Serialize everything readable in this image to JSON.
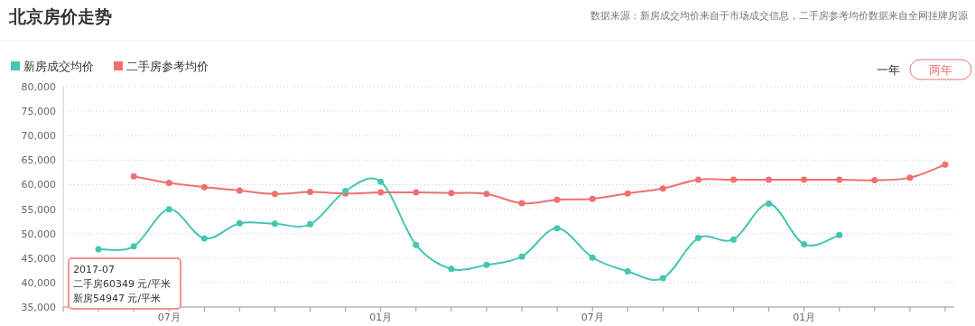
{
  "chart_data": {
    "type": "line",
    "title": "北京房价走势",
    "annotations": [
      "数据来源：新房成交均价来自于市场成交信息，二手房参考均价数据来自全网挂牌房源",
      "一年",
      "两年",
      {
        "text": "2017-07"
      },
      {
        "text": "二手房60349 元/平米"
      },
      {
        "text": "新房54947 元/平米"
      }
    ],
    "categories": [
      null,
      null,
      null,
      "07月",
      null,
      null,
      null,
      null,
      null,
      "01月",
      null,
      null,
      null,
      null,
      null,
      "07月",
      null,
      null,
      null,
      null,
      null,
      "01月",
      null,
      null,
      null,
      null
    ],
    "series": [
      {
        "name": "新房成交均价",
        "color": "#45c6b0",
        "values": [
          null,
          46800,
          47400,
          54947,
          49000,
          52100,
          52000,
          51900,
          58700,
          60600,
          47700,
          42800,
          43600,
          45300,
          51100,
          45100,
          42300,
          40900,
          49100,
          48800,
          56100,
          47800,
          49700,
          null,
          null,
          null
        ]
      },
      {
        "name": "二手房参考均价",
        "color": "#ee7070",
        "values": [
          null,
          null,
          61700,
          60349,
          59500,
          58800,
          58100,
          58500,
          58200,
          58400,
          58400,
          58300,
          58100,
          56200,
          56900,
          57100,
          58200,
          59200,
          61000,
          61000,
          61000,
          61000,
          61000,
          60900,
          61400,
          64100
        ]
      }
    ],
    "ylim": [
      35000,
      80000
    ],
    "yticks": [
      {
        "value": 35000,
        "label": "35,000"
      },
      {
        "value": 40000,
        "label": "40,000"
      },
      {
        "value": 45000,
        "label": "45,000"
      },
      {
        "value": 50000,
        "label": "50,000"
      },
      {
        "value": 55000,
        "label": "55,000"
      },
      {
        "value": 60000,
        "label": "60,000"
      },
      {
        "value": 65000,
        "label": "65,000"
      },
      {
        "value": 70000,
        "label": "70,000"
      },
      {
        "value": 75000,
        "label": "75,000"
      },
      {
        "value": 80000,
        "label": "80,000"
      }
    ],
    "grid": "y",
    "legend": "top left",
    "marker": "circle",
    "line_style": "solid"
  }
}
